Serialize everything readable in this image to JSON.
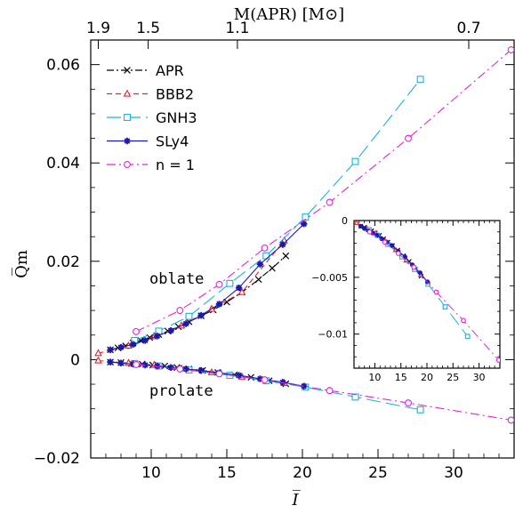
{
  "chart_data": {
    "type": "line",
    "xlabel": "I̅",
    "ylabel": "Q̅m",
    "xlim": [
      6.0,
      34.0
    ],
    "ylim": [
      -0.02,
      0.065
    ],
    "x_ticks": [
      "10",
      "15",
      "20",
      "25",
      "30"
    ],
    "y_ticks": [
      "−0.02",
      "0",
      "0.02",
      "0.04",
      "0.06"
    ],
    "top_axis": {
      "label": "M(APR) [M⊙]",
      "ticks": [
        {
          "label": "1.9",
          "at_I": 6.5
        },
        {
          "label": "1.5",
          "at_I": 9.8
        },
        {
          "label": "1.1",
          "at_I": 15.7
        },
        {
          "label": "0.7",
          "at_I": 31.0
        }
      ]
    },
    "legend_position": "top-left",
    "series": [
      {
        "name": "APR",
        "color": "#000000",
        "dash": "8,3,2,3",
        "marker": "cross",
        "oblate": [
          [
            7.3,
            0.002
          ],
          [
            7.8,
            0.0024
          ],
          [
            8.3,
            0.0028
          ],
          [
            8.8,
            0.0034
          ],
          [
            9.3,
            0.0039
          ],
          [
            9.9,
            0.0045
          ],
          [
            10.5,
            0.0051
          ],
          [
            11.1,
            0.0058
          ],
          [
            11.8,
            0.0067
          ],
          [
            12.5,
            0.0077
          ],
          [
            13.3,
            0.0089
          ],
          [
            14.1,
            0.0101
          ],
          [
            15.0,
            0.0117
          ],
          [
            16.0,
            0.0137
          ],
          [
            17.1,
            0.0163
          ],
          [
            18.0,
            0.0186
          ],
          [
            18.9,
            0.0211
          ]
        ],
        "prolate": [
          [
            7.3,
            -0.0005
          ],
          [
            8.0,
            -0.0006
          ],
          [
            8.7,
            -0.0008
          ],
          [
            9.4,
            -0.0009
          ],
          [
            10.1,
            -0.0011
          ],
          [
            10.9,
            -0.0013
          ],
          [
            11.7,
            -0.0016
          ],
          [
            12.5,
            -0.0019
          ],
          [
            13.4,
            -0.0022
          ],
          [
            14.4,
            -0.0026
          ],
          [
            15.5,
            -0.0031
          ],
          [
            16.6,
            -0.0036
          ],
          [
            17.8,
            -0.0043
          ],
          [
            18.9,
            -0.0049
          ]
        ]
      },
      {
        "name": "BBB2",
        "color": "#e8202a",
        "dash": "6,4",
        "marker": "triangle",
        "oblate": [
          [
            6.5,
            0.0013
          ],
          [
            8.5,
            0.0028
          ],
          [
            10.2,
            0.0047
          ],
          [
            12.0,
            0.0069
          ],
          [
            14.0,
            0.0103
          ],
          [
            16.0,
            0.0137
          ],
          [
            18.8,
            0.0242
          ]
        ],
        "prolate": [
          [
            6.5,
            -0.0002
          ],
          [
            8.5,
            -0.0007
          ],
          [
            10.2,
            -0.0011
          ],
          [
            12.0,
            -0.0018
          ],
          [
            14.0,
            -0.0026
          ],
          [
            16.0,
            -0.0035
          ],
          [
            18.8,
            -0.0048
          ]
        ]
      },
      {
        "name": "GNH3",
        "color": "#1ab0e0",
        "dash": "16,6",
        "marker": "square",
        "oblate": [
          [
            8.9,
            0.0039
          ],
          [
            10.5,
            0.0058
          ],
          [
            12.5,
            0.0088
          ],
          [
            15.2,
            0.0155
          ],
          [
            17.6,
            0.0211
          ],
          [
            20.2,
            0.029
          ],
          [
            23.5,
            0.0403
          ],
          [
            27.8,
            0.057
          ]
        ],
        "prolate": [
          [
            8.9,
            -0.0008
          ],
          [
            10.5,
            -0.0013
          ],
          [
            12.5,
            -0.0021
          ],
          [
            15.2,
            -0.0032
          ],
          [
            17.6,
            -0.0043
          ],
          [
            20.2,
            -0.0056
          ],
          [
            23.5,
            -0.0076
          ],
          [
            27.8,
            -0.0102
          ]
        ]
      },
      {
        "name": "SLy4",
        "color": "#1a1aaa",
        "dash": "none",
        "marker": "star",
        "oblate": [
          [
            7.3,
            0.002
          ],
          [
            8.0,
            0.0025
          ],
          [
            8.8,
            0.0031
          ],
          [
            9.6,
            0.0039
          ],
          [
            10.4,
            0.0048
          ],
          [
            11.3,
            0.0059
          ],
          [
            12.3,
            0.0073
          ],
          [
            13.3,
            0.009
          ],
          [
            14.5,
            0.0113
          ],
          [
            15.8,
            0.0146
          ],
          [
            17.2,
            0.0194
          ],
          [
            18.7,
            0.0234
          ],
          [
            20.1,
            0.0276
          ]
        ],
        "prolate": [
          [
            7.3,
            -0.0005
          ],
          [
            8.0,
            -0.0007
          ],
          [
            8.8,
            -0.0009
          ],
          [
            9.6,
            -0.0011
          ],
          [
            10.4,
            -0.0013
          ],
          [
            11.3,
            -0.0016
          ],
          [
            12.3,
            -0.0019
          ],
          [
            13.3,
            -0.0022
          ],
          [
            14.5,
            -0.0027
          ],
          [
            15.8,
            -0.0032
          ],
          [
            17.2,
            -0.0039
          ],
          [
            18.7,
            -0.0046
          ],
          [
            20.1,
            -0.0054
          ]
        ]
      },
      {
        "name": "n = 1",
        "color": "#e020e0",
        "dash": "10,4,2,4",
        "marker": "circle",
        "oblate": [
          [
            9.0,
            0.0057
          ],
          [
            11.9,
            0.01
          ],
          [
            14.5,
            0.0153
          ],
          [
            17.5,
            0.0227
          ],
          [
            21.8,
            0.032
          ],
          [
            27.0,
            0.045
          ],
          [
            33.8,
            0.063
          ]
        ],
        "prolate": [
          [
            9.0,
            -0.001
          ],
          [
            11.9,
            -0.0019
          ],
          [
            14.5,
            -0.0029
          ],
          [
            17.5,
            -0.0041
          ],
          [
            21.8,
            -0.0063
          ],
          [
            27.0,
            -0.0088
          ],
          [
            33.8,
            -0.0123
          ]
        ]
      }
    ],
    "annotations": [
      "oblate",
      "prolate"
    ],
    "inset": {
      "xlim": [
        6.0,
        34.0
      ],
      "ylim": [
        -0.013,
        0.0
      ],
      "x_ticks": [
        "10",
        "15",
        "20",
        "25",
        "30"
      ],
      "y_ticks": [
        "0",
        "−0.005",
        "−0.01"
      ]
    }
  }
}
